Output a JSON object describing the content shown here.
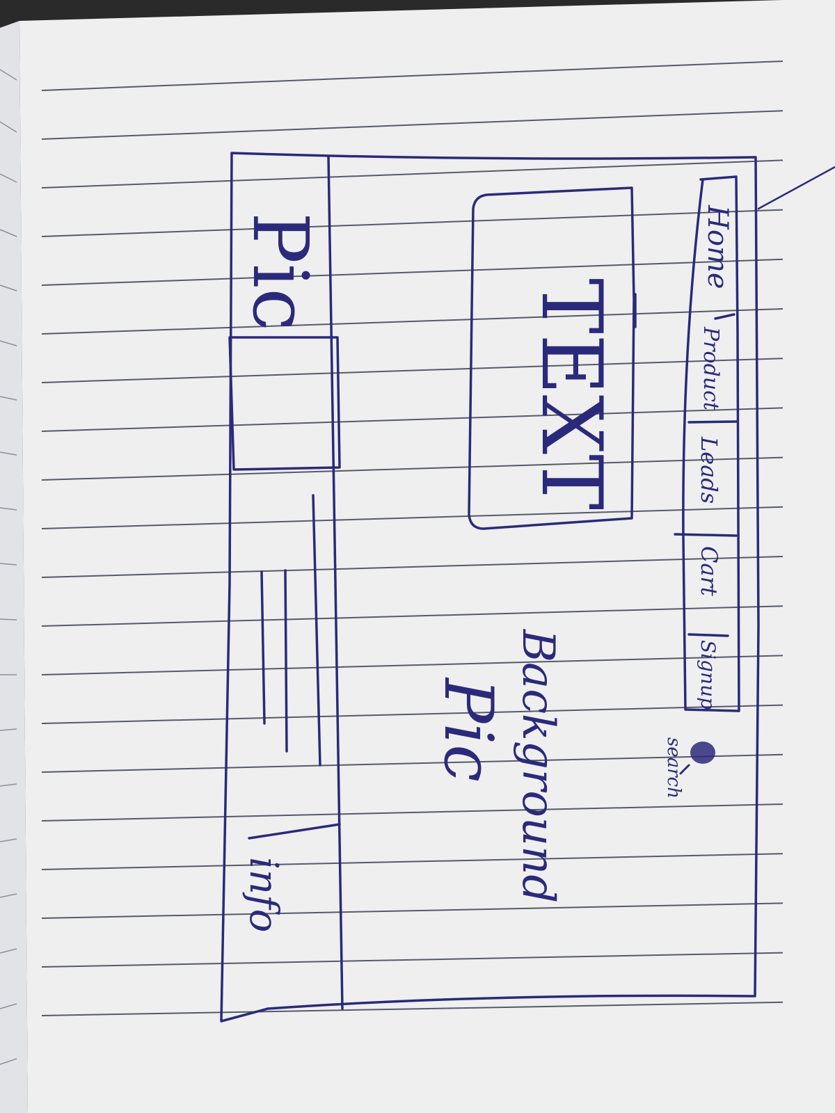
{
  "colors": {
    "paper": "#efeff0",
    "paper_shadow": "#d9dadc",
    "rule_line": "#555a66",
    "ink": "#2b2a7a",
    "binding_strip": "#e2e3e6"
  },
  "sketch": {
    "nav": {
      "items": [
        "Home",
        "Product",
        "Leads",
        "Cart",
        "Signup"
      ],
      "search_label": "search",
      "search_icon": "search-icon"
    },
    "text_box_label": "TEXT",
    "background_label_line1": "Background",
    "background_label_line2": "Pic",
    "footer": {
      "pic_label": "Pic",
      "info_label": "info"
    }
  }
}
